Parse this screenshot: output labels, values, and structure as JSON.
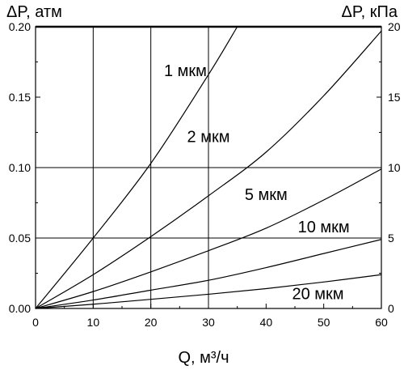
{
  "chart_data": {
    "type": "line",
    "title": "",
    "xlabel": "Q, м³/ч",
    "ylabel_left": "ΔP, атм",
    "ylabel_right": "ΔP, кПа",
    "xlim": [
      0,
      60
    ],
    "ylim_left": [
      0,
      0.2
    ],
    "ylim_right": [
      0,
      20
    ],
    "x_ticks": [
      "0",
      "10",
      "20",
      "30",
      "40",
      "50",
      "60"
    ],
    "y_ticks_left": [
      "0.00",
      "0.05",
      "0.10",
      "0.15",
      "0.20"
    ],
    "y_ticks_right": [
      "0",
      "5",
      "10",
      "15",
      "20"
    ],
    "grid": {
      "x": [
        10,
        20,
        30
      ],
      "y": [
        0.05,
        0.1,
        0.2
      ]
    },
    "series": [
      {
        "name": "1 мкм",
        "x": [
          0,
          10,
          20,
          30,
          35
        ],
        "y": [
          0,
          0.05,
          0.103,
          0.166,
          0.2
        ]
      },
      {
        "name": "2 мкм",
        "x": [
          0,
          10,
          20,
          30,
          40,
          50,
          60
        ],
        "y": [
          0,
          0.024,
          0.051,
          0.08,
          0.111,
          0.151,
          0.197
        ]
      },
      {
        "name": "5 мкм",
        "x": [
          0,
          10,
          20,
          30,
          40,
          50,
          60
        ],
        "y": [
          0,
          0.012,
          0.026,
          0.041,
          0.057,
          0.077,
          0.099
        ]
      },
      {
        "name": "10 мкм",
        "x": [
          0,
          10,
          20,
          30,
          40,
          50,
          60
        ],
        "y": [
          0,
          0.006,
          0.013,
          0.02,
          0.029,
          0.039,
          0.049
        ]
      },
      {
        "name": "20 мкм",
        "x": [
          0,
          10,
          20,
          30,
          40,
          50,
          60
        ],
        "y": [
          0,
          0.003,
          0.0065,
          0.0101,
          0.0141,
          0.0188,
          0.024
        ]
      }
    ]
  }
}
